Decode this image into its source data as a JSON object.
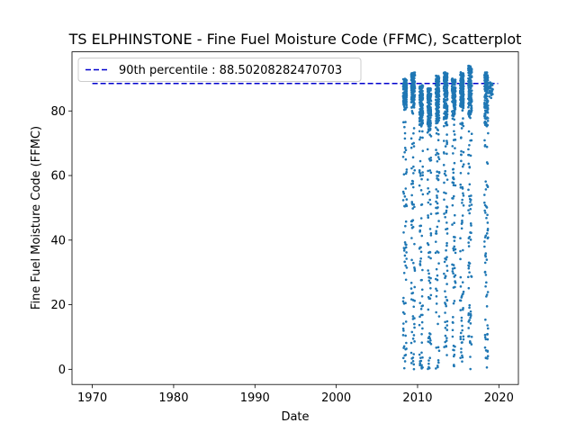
{
  "chart_data": {
    "type": "scatter",
    "title": "TS ELPHINSTONE - Fine Fuel Moisture Code (FFMC), Scatterplot",
    "xlabel": "Date",
    "ylabel": "Fine Fuel Moisture Code (FFMC)",
    "x_ticks": [
      "1970",
      "1980",
      "1990",
      "2000",
      "2010",
      "2020"
    ],
    "y_ticks": [
      "0",
      "20",
      "40",
      "60",
      "80"
    ],
    "xlim": [
      1967.5,
      2022.4
    ],
    "ylim": [
      -4.7,
      98.3
    ],
    "legend": {
      "position": "top-left",
      "entries": [
        "90th percentile : 88.50208282470703"
      ]
    },
    "reference_line": {
      "name": "90th percentile : 88.50208282470703",
      "y": 88.50208282470703,
      "x_start": 1970,
      "x_end": 2019.9,
      "style": "dashed",
      "color": "#0000cd"
    },
    "series": [
      {
        "name": "",
        "color": "#1f77b4",
        "season_span_years": 0.45,
        "seasons": [
          {
            "year": 2008.45,
            "high_min": 80,
            "high_max": 90,
            "has_low": true
          },
          {
            "year": 2009.45,
            "high_min": 79,
            "high_max": 92,
            "has_low": true
          },
          {
            "year": 2010.45,
            "high_min": 75,
            "high_max": 88,
            "has_low": true
          },
          {
            "year": 2011.45,
            "high_min": 73,
            "high_max": 87,
            "has_low": true
          },
          {
            "year": 2012.45,
            "high_min": 76,
            "high_max": 91,
            "has_low": true
          },
          {
            "year": 2013.45,
            "high_min": 75,
            "high_max": 92,
            "has_low": true
          },
          {
            "year": 2014.45,
            "high_min": 78,
            "high_max": 90,
            "has_low": true
          },
          {
            "year": 2015.45,
            "high_min": 80,
            "high_max": 92,
            "has_low": true
          },
          {
            "year": 2016.45,
            "high_min": 77,
            "high_max": 94,
            "has_low": true
          },
          {
            "year": 2018.45,
            "high_min": 75,
            "high_max": 92,
            "has_low": true
          },
          {
            "year": 2019.05,
            "high_min": 84,
            "high_max": 89,
            "has_low": false
          }
        ]
      }
    ]
  }
}
